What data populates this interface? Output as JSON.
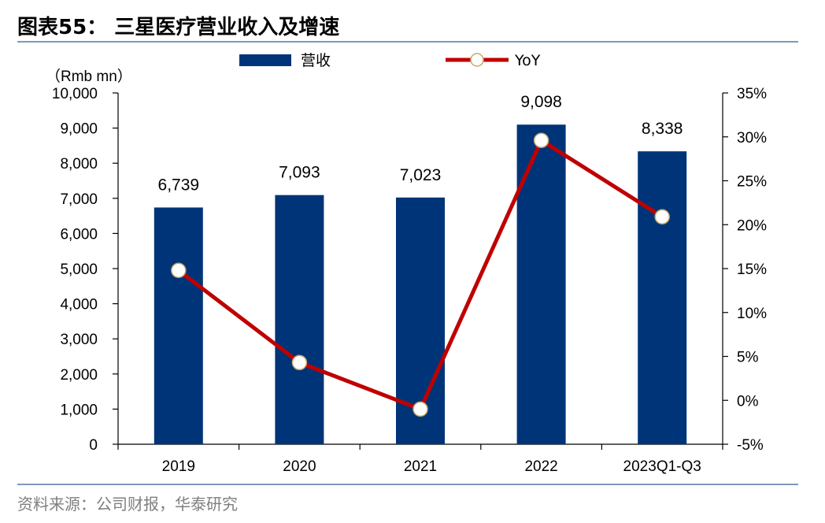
{
  "figure": {
    "title": "图表55： 三星医疗营业收入及增速",
    "source": "资料来源：公司财报，华泰研究"
  },
  "colors": {
    "bar": "#003478",
    "line": "#c00000",
    "marker_fill": "#ffffff",
    "rule": "#7f98bd"
  },
  "chart_data": {
    "type": "bar",
    "categories": [
      "2019",
      "2020",
      "2021",
      "2022",
      "2023Q1-Q3"
    ],
    "series": [
      {
        "name": "营收",
        "type": "bar",
        "axis": "left",
        "values": [
          6739,
          7093,
          7023,
          9098,
          8338
        ],
        "labels": [
          "6,739",
          "7,093",
          "7,023",
          "9,098",
          "8,338"
        ]
      },
      {
        "name": "YoY",
        "type": "line",
        "axis": "right",
        "values": [
          14.8,
          4.3,
          -1.0,
          29.6,
          20.9
        ]
      }
    ],
    "y_left": {
      "unit_label": "（Rmb mn）",
      "min": 0,
      "max": 10000,
      "step": 1000,
      "ticks": [
        "0",
        "1,000",
        "2,000",
        "3,000",
        "4,000",
        "5,000",
        "6,000",
        "7,000",
        "8,000",
        "9,000",
        "10,000"
      ]
    },
    "y_right": {
      "min": -5,
      "max": 35,
      "step": 5,
      "ticks": [
        "-5%",
        "0%",
        "5%",
        "10%",
        "15%",
        "20%",
        "25%",
        "30%",
        "35%"
      ]
    },
    "legend": {
      "position": "top",
      "items": [
        "营收",
        "YoY"
      ]
    },
    "grid": false
  }
}
